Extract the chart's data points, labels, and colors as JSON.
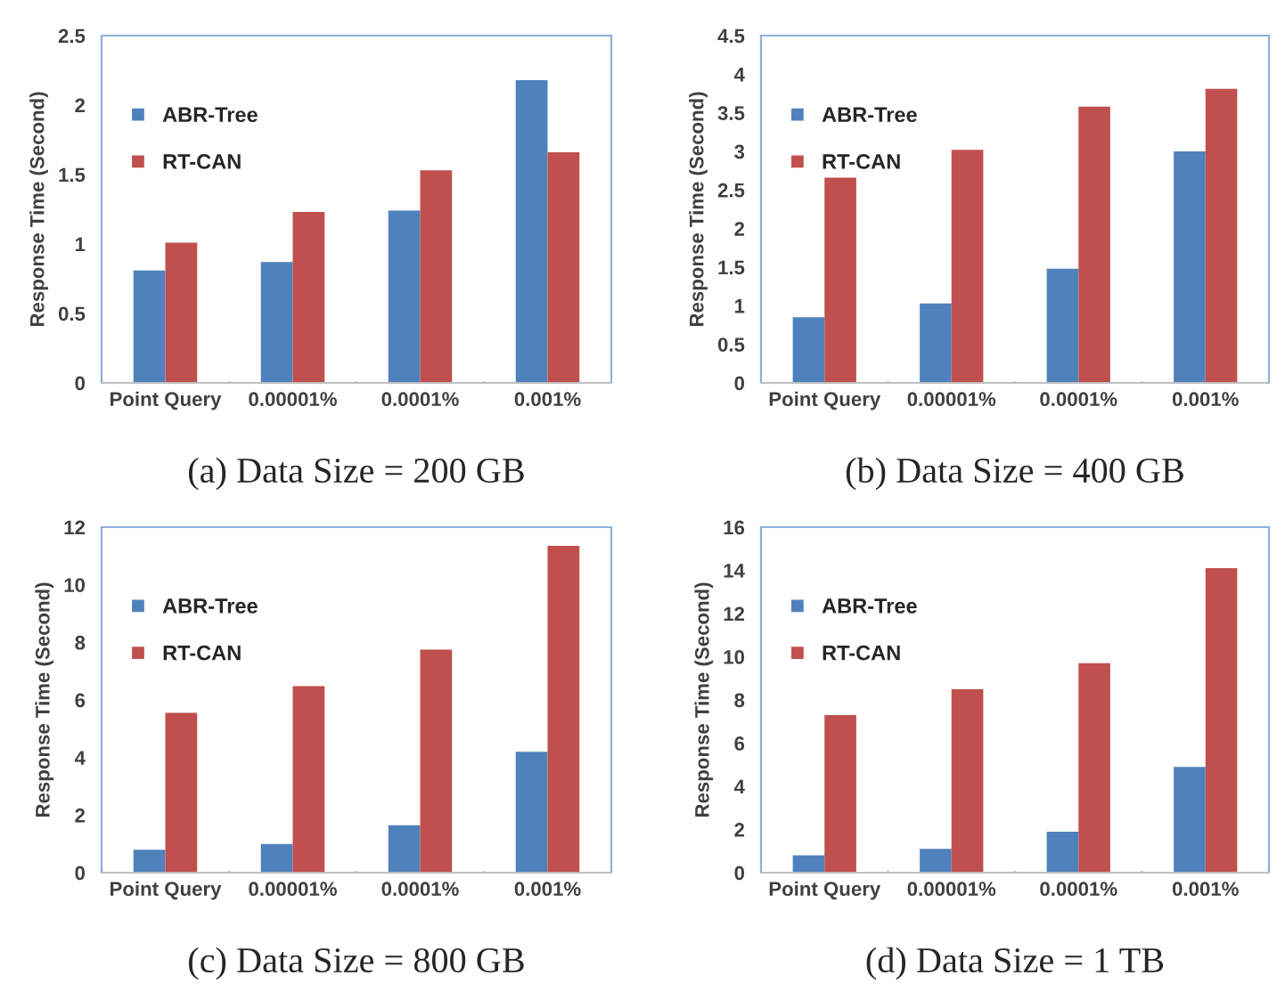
{
  "chart_data": [
    {
      "type": "bar",
      "title": "(a) Data Size = 200 GB",
      "ylabel": "Response Time (Second)",
      "categories": [
        "Point Query",
        "0.00001%",
        "0.0001%",
        "0.001%"
      ],
      "series": [
        {
          "name": "ABR-Tree",
          "color": "#4f81bd",
          "values": [
            0.81,
            0.87,
            1.24,
            2.18
          ]
        },
        {
          "name": "RT-CAN",
          "color": "#c0504d",
          "values": [
            1.01,
            1.23,
            1.53,
            1.66
          ]
        }
      ],
      "ylim": [
        0,
        2.5
      ],
      "yticks": [
        0,
        0.5,
        1,
        1.5,
        2,
        2.5
      ],
      "legend": "top left",
      "grid": false
    },
    {
      "type": "bar",
      "title": "(b) Data Size = 400 GB",
      "ylabel": "Response Time (Second)",
      "categories": [
        "Point Query",
        "0.00001%",
        "0.0001%",
        "0.001%"
      ],
      "series": [
        {
          "name": "ABR-Tree",
          "color": "#4f81bd",
          "values": [
            0.85,
            1.03,
            1.48,
            3.0
          ]
        },
        {
          "name": "RT-CAN",
          "color": "#c0504d",
          "values": [
            2.66,
            3.02,
            3.58,
            3.81
          ]
        }
      ],
      "ylim": [
        0,
        4.5
      ],
      "yticks": [
        0,
        0.5,
        1,
        1.5,
        2,
        2.5,
        3,
        3.5,
        4,
        4.5
      ],
      "legend": "top left",
      "grid": false
    },
    {
      "type": "bar",
      "title": "(c) Data Size = 800 GB",
      "ylabel": "Response Time (Second)",
      "categories": [
        "Point Query",
        "0.00001%",
        "0.0001%",
        "0.001%"
      ],
      "series": [
        {
          "name": "ABR-Tree",
          "color": "#4f81bd",
          "values": [
            0.8,
            1.0,
            1.65,
            4.2
          ]
        },
        {
          "name": "RT-CAN",
          "color": "#c0504d",
          "values": [
            5.55,
            6.48,
            7.75,
            11.35
          ]
        }
      ],
      "ylim": [
        0,
        12
      ],
      "yticks": [
        0,
        2,
        4,
        6,
        8,
        10,
        12
      ],
      "legend": "top left",
      "grid": false
    },
    {
      "type": "bar",
      "title": "(d) Data Size = 1 TB",
      "ylabel": "Response Time (Second)",
      "categories": [
        "Point Query",
        "0.00001%",
        "0.0001%",
        "0.001%"
      ],
      "series": [
        {
          "name": "ABR-Tree",
          "color": "#4f81bd",
          "values": [
            0.8,
            1.1,
            1.9,
            4.9
          ]
        },
        {
          "name": "RT-CAN",
          "color": "#c0504d",
          "values": [
            7.3,
            8.5,
            9.7,
            14.1
          ]
        }
      ],
      "ylim": [
        0,
        16
      ],
      "yticks": [
        0,
        2,
        4,
        6,
        8,
        10,
        12,
        14,
        16
      ],
      "legend": "top left",
      "grid": false
    }
  ]
}
